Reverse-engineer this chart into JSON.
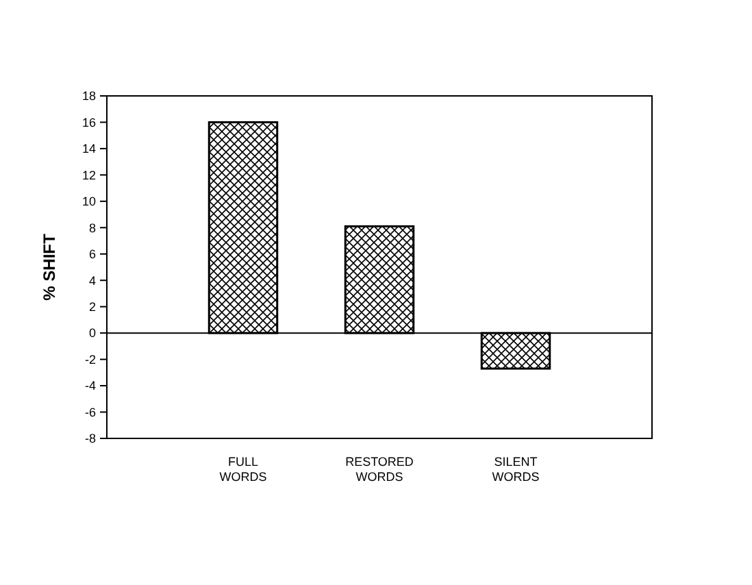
{
  "chart_data": {
    "type": "bar",
    "ylabel": "% SHIFT",
    "categories": [
      "FULL\nWORDS",
      "RESTORED\nWORDS",
      "SILENT\nWORDS"
    ],
    "values": [
      16,
      8.1,
      -2.7
    ],
    "color": "#000000",
    "ylim": [
      -8,
      18
    ],
    "yticks": [
      -8,
      -6,
      -4,
      -2,
      0,
      2,
      4,
      6,
      8,
      10,
      12,
      14,
      16,
      18
    ]
  }
}
